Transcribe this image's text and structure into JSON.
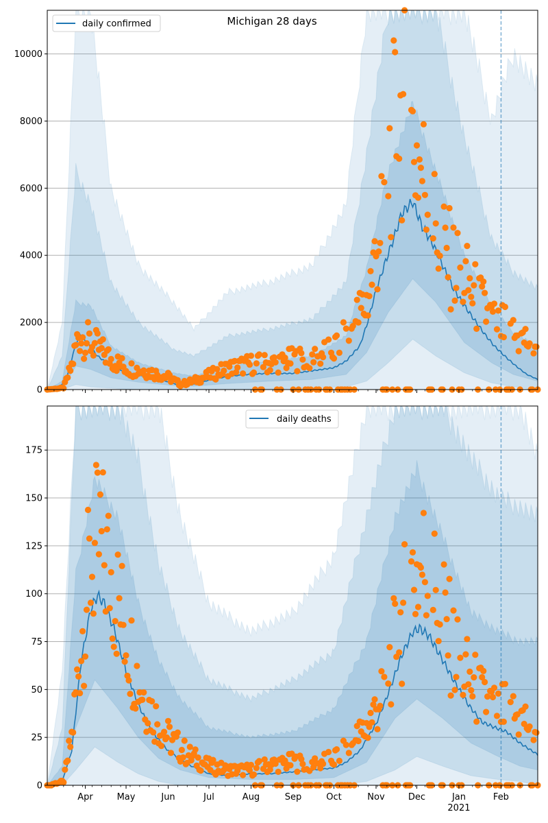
{
  "figure_title": "Michigan 28 days",
  "colors": {
    "line": "#1f77b4",
    "observed": "#ff7f0e",
    "band": "#1f77b4",
    "grid": "#b0b0b0",
    "vline": "#1f77b4"
  },
  "x_axis": {
    "month_labels": [
      "Apr",
      "May",
      "Jun",
      "Jul",
      "Aug",
      "Sep",
      "Oct",
      "Nov",
      "Dec",
      "Jan",
      "Feb"
    ],
    "year_label": "2021",
    "xlim": [
      "2020-03-04",
      "2021-02-28"
    ],
    "vline_date": "2021-02-01"
  },
  "chart_data": [
    {
      "type": "line",
      "legend_label": "daily confirmed",
      "legend_position": "top-left",
      "ylim": [
        0,
        11300
      ],
      "yticks": [
        0,
        2000,
        4000,
        6000,
        8000,
        10000
      ],
      "grid": true,
      "series_line_knots": [
        [
          "2020-03-04",
          0
        ],
        [
          "2020-03-12",
          30
        ],
        [
          "2020-03-18",
          300
        ],
        [
          "2020-03-24",
          1200
        ],
        [
          "2020-03-28",
          1650
        ],
        [
          "2020-04-02",
          1400
        ],
        [
          "2020-04-10",
          1000
        ],
        [
          "2020-04-20",
          700
        ],
        [
          "2020-05-01",
          520
        ],
        [
          "2020-05-15",
          400
        ],
        [
          "2020-06-01",
          230
        ],
        [
          "2020-06-10",
          110
        ],
        [
          "2020-06-20",
          160
        ],
        [
          "2020-07-01",
          280
        ],
        [
          "2020-07-15",
          390
        ],
        [
          "2020-08-01",
          460
        ],
        [
          "2020-08-15",
          480
        ],
        [
          "2020-09-01",
          480
        ],
        [
          "2020-09-15",
          560
        ],
        [
          "2020-10-01",
          650
        ],
        [
          "2020-10-10",
          850
        ],
        [
          "2020-10-20",
          1300
        ],
        [
          "2020-10-25",
          1900
        ],
        [
          "2020-10-31",
          2800
        ],
        [
          "2020-11-07",
          3700
        ],
        [
          "2020-11-14",
          4500
        ],
        [
          "2020-11-20",
          5250
        ],
        [
          "2020-11-28",
          5600
        ],
        [
          "2020-12-05",
          4850
        ],
        [
          "2020-12-12",
          4400
        ],
        [
          "2020-12-20",
          3700
        ],
        [
          "2020-12-28",
          3000
        ],
        [
          "2021-01-05",
          2500
        ],
        [
          "2021-01-12",
          2100
        ],
        [
          "2021-01-20",
          1650
        ],
        [
          "2021-01-27",
          1300
        ],
        [
          "2021-02-05",
          950
        ],
        [
          "2021-02-12",
          700
        ],
        [
          "2021-02-20",
          450
        ],
        [
          "2021-02-28",
          300
        ]
      ],
      "band_knots": [
        [
          "2020-03-04",
          0,
          0,
          0,
          0,
          0,
          0
        ],
        [
          "2020-03-15",
          0,
          250,
          0,
          1000,
          0,
          2000
        ],
        [
          "2020-03-25",
          700,
          2600,
          150,
          6500,
          0,
          11300
        ],
        [
          "2020-04-05",
          600,
          2500,
          80,
          5500,
          0,
          11300
        ],
        [
          "2020-04-20",
          350,
          1300,
          40,
          3200,
          0,
          6000
        ],
        [
          "2020-05-10",
          220,
          800,
          0,
          2000,
          0,
          3700
        ],
        [
          "2020-06-05",
          120,
          500,
          0,
          1200,
          0,
          2600
        ],
        [
          "2020-06-20",
          100,
          400,
          0,
          1000,
          0,
          1800
        ],
        [
          "2020-07-15",
          180,
          700,
          0,
          1600,
          0,
          2900
        ],
        [
          "2020-08-15",
          250,
          850,
          20,
          1800,
          0,
          3200
        ],
        [
          "2020-09-15",
          300,
          1000,
          50,
          2100,
          0,
          3700
        ],
        [
          "2020-10-10",
          450,
          1600,
          80,
          3200,
          0,
          5500
        ],
        [
          "2020-10-25",
          1100,
          3600,
          250,
          7000,
          0,
          11300
        ],
        [
          "2020-11-10",
          2300,
          6500,
          800,
          11300,
          0,
          11300
        ],
        [
          "2020-11-28",
          3300,
          8500,
          1500,
          11300,
          0,
          11300
        ],
        [
          "2020-12-15",
          2600,
          6500,
          1000,
          11300,
          0,
          11300
        ],
        [
          "2021-01-05",
          1400,
          4000,
          500,
          7500,
          0,
          11300
        ],
        [
          "2021-01-25",
          800,
          2500,
          200,
          4500,
          0,
          8000
        ],
        [
          "2021-02-10",
          450,
          1700,
          80,
          3500,
          0,
          10000
        ],
        [
          "2021-02-28",
          250,
          1300,
          0,
          3000,
          0,
          9000
        ]
      ],
      "observed_knots": [
        [
          "2020-03-04",
          0
        ],
        [
          "2020-03-16",
          50
        ],
        [
          "2020-03-22",
          700
        ],
        [
          "2020-03-27",
          1650
        ],
        [
          "2020-04-01",
          1500
        ],
        [
          "2020-04-10",
          1250
        ],
        [
          "2020-04-20",
          900
        ],
        [
          "2020-05-01",
          650
        ],
        [
          "2020-05-15",
          560
        ],
        [
          "2020-06-01",
          370
        ],
        [
          "2020-06-10",
          160
        ],
        [
          "2020-06-20",
          260
        ],
        [
          "2020-07-01",
          420
        ],
        [
          "2020-07-15",
          640
        ],
        [
          "2020-08-01",
          760
        ],
        [
          "2020-08-15",
          780
        ],
        [
          "2020-09-01",
          900
        ],
        [
          "2020-09-15",
          950
        ],
        [
          "2020-10-01",
          1200
        ],
        [
          "2020-10-15",
          1900
        ],
        [
          "2020-10-25",
          2600
        ],
        [
          "2020-11-01",
          4000
        ],
        [
          "2020-11-08",
          6300
        ],
        [
          "2020-11-15",
          7800
        ],
        [
          "2020-11-22",
          8200
        ],
        [
          "2020-11-28",
          7500
        ],
        [
          "2020-12-05",
          6500
        ],
        [
          "2020-12-12",
          5200
        ],
        [
          "2020-12-20",
          4200
        ],
        [
          "2020-12-28",
          3700
        ],
        [
          "2021-01-05",
          3300
        ],
        [
          "2021-01-15",
          2600
        ],
        [
          "2021-01-25",
          2100
        ],
        [
          "2021-02-05",
          1750
        ],
        [
          "2021-02-15",
          1500
        ],
        [
          "2021-02-28",
          1400
        ]
      ]
    },
    {
      "type": "line",
      "legend_label": "daily deaths",
      "legend_position": "top-center",
      "ylim": [
        0,
        198
      ],
      "yticks": [
        0,
        25,
        50,
        75,
        100,
        125,
        150,
        175
      ],
      "grid": true,
      "series_line_knots": [
        [
          "2020-03-04",
          0
        ],
        [
          "2020-03-15",
          2
        ],
        [
          "2020-03-22",
          18
        ],
        [
          "2020-03-29",
          65
        ],
        [
          "2020-04-05",
          92
        ],
        [
          "2020-04-10",
          99
        ],
        [
          "2020-04-15",
          95
        ],
        [
          "2020-04-22",
          82
        ],
        [
          "2020-05-01",
          60
        ],
        [
          "2020-05-10",
          42
        ],
        [
          "2020-05-20",
          28
        ],
        [
          "2020-06-01",
          18
        ],
        [
          "2020-06-15",
          11
        ],
        [
          "2020-07-01",
          6
        ],
        [
          "2020-07-15",
          5
        ],
        [
          "2020-08-01",
          6
        ],
        [
          "2020-08-15",
          6
        ],
        [
          "2020-09-01",
          7
        ],
        [
          "2020-09-15",
          8
        ],
        [
          "2020-10-01",
          9
        ],
        [
          "2020-10-10",
          12
        ],
        [
          "2020-10-20",
          18
        ],
        [
          "2020-11-01",
          32
        ],
        [
          "2020-11-10",
          48
        ],
        [
          "2020-11-20",
          68
        ],
        [
          "2020-11-28",
          80
        ],
        [
          "2020-12-03",
          82
        ],
        [
          "2020-12-10",
          78
        ],
        [
          "2020-12-18",
          68
        ],
        [
          "2020-12-28",
          55
        ],
        [
          "2021-01-08",
          42
        ],
        [
          "2021-01-18",
          33
        ],
        [
          "2021-01-28",
          30
        ],
        [
          "2021-02-05",
          28
        ],
        [
          "2021-02-15",
          22
        ],
        [
          "2021-02-28",
          16
        ]
      ],
      "band_knots": [
        [
          "2020-03-04",
          0,
          0,
          0,
          0,
          0,
          0
        ],
        [
          "2020-03-15",
          0,
          10,
          0,
          30,
          0,
          60
        ],
        [
          "2020-03-25",
          30,
          110,
          8,
          198,
          0,
          198
        ],
        [
          "2020-04-08",
          55,
          160,
          20,
          198,
          0,
          198
        ],
        [
          "2020-04-25",
          40,
          140,
          12,
          198,
          0,
          198
        ],
        [
          "2020-05-10",
          25,
          95,
          6,
          170,
          0,
          198
        ],
        [
          "2020-05-25",
          14,
          65,
          2,
          115,
          0,
          198
        ],
        [
          "2020-06-10",
          8,
          45,
          0,
          80,
          0,
          140
        ],
        [
          "2020-07-01",
          4,
          30,
          0,
          55,
          0,
          95
        ],
        [
          "2020-08-01",
          3,
          25,
          0,
          45,
          0,
          80
        ],
        [
          "2020-09-01",
          3,
          28,
          0,
          55,
          0,
          90
        ],
        [
          "2020-10-01",
          4,
          40,
          0,
          70,
          0,
          120
        ],
        [
          "2020-10-25",
          12,
          75,
          2,
          140,
          0,
          198
        ],
        [
          "2020-11-15",
          35,
          140,
          8,
          198,
          0,
          198
        ],
        [
          "2020-12-01",
          45,
          165,
          15,
          198,
          0,
          198
        ],
        [
          "2020-12-20",
          35,
          130,
          10,
          198,
          0,
          198
        ],
        [
          "2021-01-10",
          22,
          90,
          5,
          170,
          0,
          198
        ],
        [
          "2021-01-30",
          15,
          80,
          3,
          150,
          0,
          198
        ],
        [
          "2021-02-15",
          10,
          75,
          2,
          145,
          0,
          198
        ],
        [
          "2021-02-28",
          8,
          75,
          0,
          140,
          0,
          170
        ]
      ],
      "observed_knots": [
        [
          "2020-03-04",
          0
        ],
        [
          "2020-03-16",
          2
        ],
        [
          "2020-03-22",
          25
        ],
        [
          "2020-03-29",
          75
        ],
        [
          "2020-04-05",
          115
        ],
        [
          "2020-04-12",
          125
        ],
        [
          "2020-04-20",
          110
        ],
        [
          "2020-05-01",
          80
        ],
        [
          "2020-05-10",
          55
        ],
        [
          "2020-05-20",
          38
        ],
        [
          "2020-06-01",
          25
        ],
        [
          "2020-06-15",
          16
        ],
        [
          "2020-07-01",
          10
        ],
        [
          "2020-07-15",
          8
        ],
        [
          "2020-08-01",
          8
        ],
        [
          "2020-08-15",
          11
        ],
        [
          "2020-09-01",
          12
        ],
        [
          "2020-09-15",
          11
        ],
        [
          "2020-10-01",
          14
        ],
        [
          "2020-10-15",
          22
        ],
        [
          "2020-10-25",
          30
        ],
        [
          "2020-11-01",
          40
        ],
        [
          "2020-11-10",
          62
        ],
        [
          "2020-11-20",
          85
        ],
        [
          "2020-11-28",
          110
        ],
        [
          "2020-12-05",
          115
        ],
        [
          "2020-12-12",
          105
        ],
        [
          "2020-12-20",
          90
        ],
        [
          "2020-12-28",
          70
        ],
        [
          "2021-01-08",
          55
        ],
        [
          "2021-01-18",
          45
        ],
        [
          "2021-01-28",
          40
        ],
        [
          "2021-02-05",
          38
        ],
        [
          "2021-02-15",
          35
        ],
        [
          "2021-02-28",
          30
        ]
      ]
    }
  ]
}
